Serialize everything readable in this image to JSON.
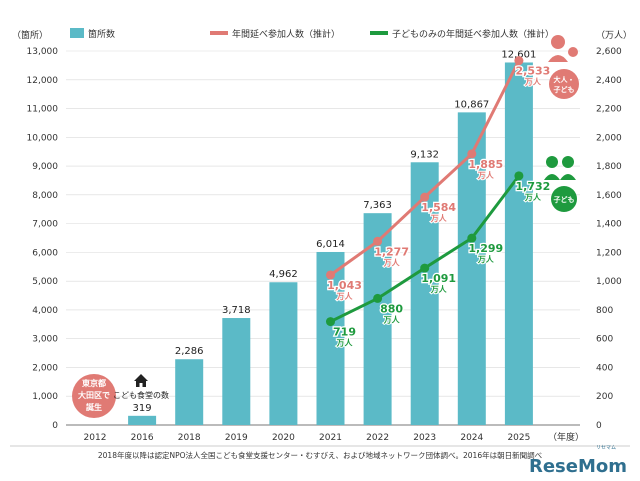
{
  "chart_data": {
    "type": "bar+line",
    "categories": [
      "2012",
      "2016",
      "2018",
      "2019",
      "2020",
      "2021",
      "2022",
      "2023",
      "2024",
      "2025"
    ],
    "x_unit_label": "（年度）",
    "left_axis": {
      "unit_label": "（箇所）",
      "range": [
        0,
        13000
      ],
      "ticks": [
        0,
        1000,
        2000,
        3000,
        4000,
        5000,
        6000,
        7000,
        8000,
        9000,
        10000,
        11000,
        12000,
        13000
      ],
      "tick_labels": [
        "0",
        "1,000",
        "2,000",
        "3,000",
        "4,000",
        "5,000",
        "6,000",
        "7,000",
        "8,000",
        "9,000",
        "10,000",
        "11,000",
        "12,000",
        "13,000"
      ]
    },
    "right_axis": {
      "unit_label": "（万人）",
      "range": [
        0,
        2600
      ],
      "ticks": [
        0,
        200,
        400,
        600,
        800,
        1000,
        1200,
        1400,
        1600,
        1800,
        2000,
        2200,
        2400,
        2600
      ],
      "tick_labels": [
        "0",
        "200",
        "400",
        "600",
        "800",
        "1,000",
        "1,200",
        "1,400",
        "1,600",
        "1,800",
        "2,000",
        "2,200",
        "2,400",
        "2,600"
      ]
    },
    "bars": {
      "name": "箇所数",
      "color": "#5bbac7",
      "values": [
        null,
        319,
        2286,
        3718,
        4962,
        6014,
        7363,
        9132,
        10867,
        12601
      ],
      "labels": [
        "",
        "319",
        "2,286",
        "3,718",
        "4,962",
        "6,014",
        "7,363",
        "9,132",
        "10,867",
        "12,601"
      ]
    },
    "lines": [
      {
        "name": "年間延べ参加人数（推計）",
        "color": "#e07a74",
        "values": [
          null,
          null,
          null,
          null,
          null,
          1043,
          1277,
          1584,
          1885,
          2533
        ],
        "labels": [
          "",
          "",
          "",
          "",
          "",
          "1,043",
          "1,277",
          "1,584",
          "1,885",
          "2,533"
        ]
      },
      {
        "name": "子どものみの年間延べ参加人数（推計）",
        "color": "#1e9a3e",
        "values": [
          null,
          null,
          null,
          null,
          null,
          719,
          880,
          1091,
          1299,
          1732
        ],
        "labels": [
          "",
          "",
          "",
          "",
          "",
          "719",
          "880",
          "1,091",
          "1,299",
          "1,732"
        ]
      }
    ],
    "value_unit": "万人",
    "annotations": {
      "origin_badge": [
        "東京都",
        "大田区で",
        "誕生"
      ],
      "shokudo_label": "こども食堂の数",
      "adult_child_badge": [
        "大人・",
        "子ども"
      ],
      "child_badge": "子ども"
    },
    "source": "2018年度以降は認定NPO法人全国こども食堂支援センター・むすびえ、および地域ネットワーク団体調べ。2016年は朝日新聞調べ"
  },
  "branding": {
    "logo_text": "ReseMom",
    "logo_sub": "リセマム"
  },
  "colors": {
    "bar": "#5bbac7",
    "adult_line": "#e07a74",
    "child_line": "#1e9a3e",
    "axis_text": "#333333",
    "grid": "#d9d9d9"
  }
}
